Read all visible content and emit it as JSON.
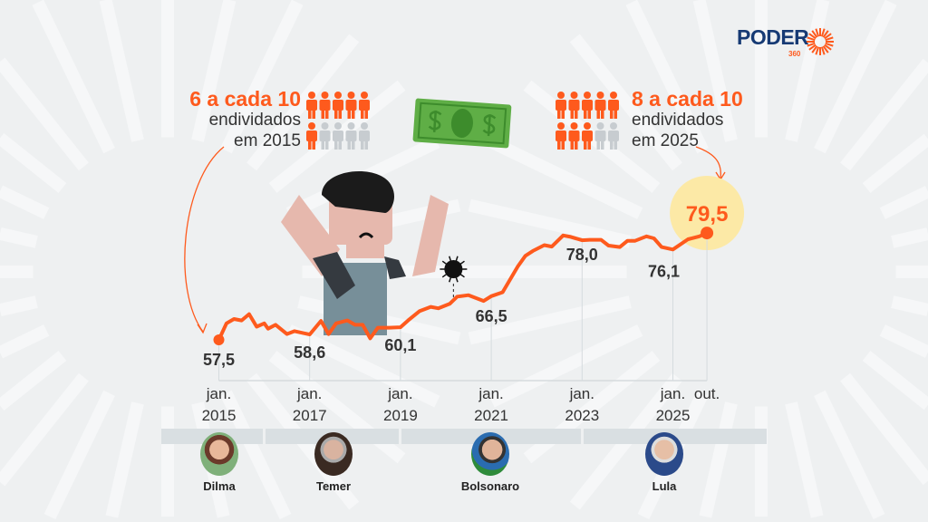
{
  "brand": {
    "logo_text": "PODER",
    "logo_sub": "360",
    "color": "#163a74",
    "accent": "#fe5a1d"
  },
  "callout_left": {
    "headline": "6 a cada 10",
    "line1": "endividados",
    "line2": "em 2015",
    "people_total": 10,
    "people_highlighted": 6
  },
  "callout_right": {
    "headline": "8 a cada 10",
    "line1": "endividados",
    "line2": "em 2025",
    "people_total": 10,
    "people_highlighted": 8
  },
  "presidents": [
    {
      "name": "Dilma"
    },
    {
      "name": "Temer"
    },
    {
      "name": "Bolsonaro"
    },
    {
      "name": "Lula"
    }
  ],
  "icons": [
    "money-bill-icon",
    "person-icon",
    "virus-icon",
    "sad-man-illustration"
  ],
  "chart_data": {
    "type": "line",
    "title": "",
    "xlabel": "",
    "ylabel": "",
    "color": "#fe5a1d",
    "highlight_color": "#fce9a6",
    "grid": false,
    "x_ticks": [
      {
        "date": "2015-01",
        "l1": "jan.",
        "l2": "2015"
      },
      {
        "date": "2017-01",
        "l1": "jan.",
        "l2": "2017"
      },
      {
        "date": "2019-01",
        "l1": "jan.",
        "l2": "2019"
      },
      {
        "date": "2021-01",
        "l1": "jan.",
        "l2": "2021"
      },
      {
        "date": "2023-01",
        "l1": "jan.",
        "l2": "2023"
      },
      {
        "date": "2025-01",
        "l1": "jan.",
        "l2": "2025"
      },
      {
        "date": "2025-10",
        "l1": "out.",
        "l2": ""
      }
    ],
    "labels": [
      {
        "date": "2015-01",
        "value": 57.5,
        "text": "57,5"
      },
      {
        "date": "2017-01",
        "value": 58.6,
        "text": "58,6"
      },
      {
        "date": "2019-01",
        "value": 60.1,
        "text": "60,1"
      },
      {
        "date": "2021-01",
        "value": 66.5,
        "text": "66,5"
      },
      {
        "date": "2023-01",
        "value": 78.0,
        "text": "78,0"
      },
      {
        "date": "2025-01",
        "value": 76.1,
        "text": "76,1"
      },
      {
        "date": "2025-10",
        "value": 79.5,
        "text": "79,5"
      }
    ],
    "series": [
      [
        "2015-01",
        57.5
      ],
      [
        "2015-03",
        60.9
      ],
      [
        "2015-05",
        61.8
      ],
      [
        "2015-07",
        61.5
      ],
      [
        "2015-09",
        62.8
      ],
      [
        "2015-11",
        60.2
      ],
      [
        "2016-01",
        60.9
      ],
      [
        "2016-02",
        59.8
      ],
      [
        "2016-04",
        60.6
      ],
      [
        "2016-07",
        58.7
      ],
      [
        "2016-09",
        59.3
      ],
      [
        "2017-01",
        58.6
      ],
      [
        "2017-04",
        61.4
      ],
      [
        "2017-06",
        58.7
      ],
      [
        "2017-08",
        60.9
      ],
      [
        "2017-11",
        61.5
      ],
      [
        "2018-01",
        60.6
      ],
      [
        "2018-03",
        60.6
      ],
      [
        "2018-05",
        57.8
      ],
      [
        "2018-07",
        60.0
      ],
      [
        "2018-10",
        60.0
      ],
      [
        "2019-01",
        60.1
      ],
      [
        "2019-03",
        61.5
      ],
      [
        "2019-06",
        63.4
      ],
      [
        "2019-09",
        64.3
      ],
      [
        "2019-11",
        64.0
      ],
      [
        "2020-02",
        64.9
      ],
      [
        "2020-04",
        66.4
      ],
      [
        "2020-07",
        66.7
      ],
      [
        "2020-11",
        65.5
      ],
      [
        "2021-01",
        66.5
      ],
      [
        "2021-04",
        67.3
      ],
      [
        "2021-08",
        72.6
      ],
      [
        "2021-10",
        74.8
      ],
      [
        "2021-12",
        75.8
      ],
      [
        "2022-03",
        77.0
      ],
      [
        "2022-05",
        76.7
      ],
      [
        "2022-08",
        79.0
      ],
      [
        "2022-10",
        78.7
      ],
      [
        "2023-01",
        78.0
      ],
      [
        "2023-03",
        78.1
      ],
      [
        "2023-06",
        78.1
      ],
      [
        "2023-08",
        76.9
      ],
      [
        "2023-11",
        76.6
      ],
      [
        "2024-01",
        77.9
      ],
      [
        "2024-03",
        77.9
      ],
      [
        "2024-06",
        78.8
      ],
      [
        "2024-08",
        78.4
      ],
      [
        "2024-10",
        76.6
      ],
      [
        "2025-01",
        76.1
      ],
      [
        "2025-05",
        78.2
      ],
      [
        "2025-08",
        78.8
      ],
      [
        "2025-10",
        79.5
      ]
    ],
    "annotation": {
      "date": "2020-03",
      "icon": "virus-icon"
    },
    "terms": [
      {
        "name": "Dilma",
        "from": "2014-10",
        "to": "2016-08"
      },
      {
        "name": "Temer",
        "from": "2016-08",
        "to": "2018-12"
      },
      {
        "name": "Bolsonaro",
        "from": "2019-01",
        "to": "2022-12"
      },
      {
        "name": "Lula",
        "from": "2023-01",
        "to": "2026-01"
      }
    ]
  }
}
